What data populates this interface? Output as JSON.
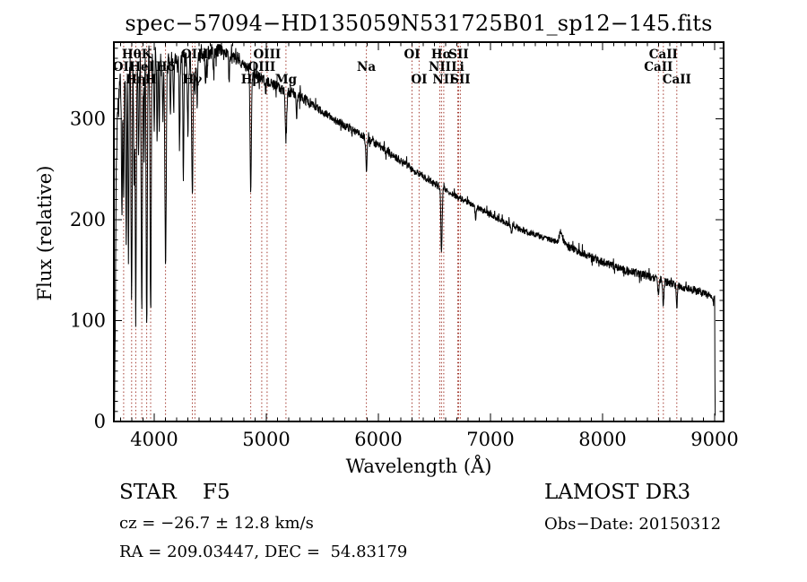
{
  "title": "spec−57094−HD135059N531725B01_sp12−145.fits",
  "footer": {
    "class_label": "STAR    F5",
    "survey": "LAMOST DR3",
    "cz": "cz = −26.7 ± 12.8 km/s",
    "obs_date": "Obs−Date: 20150312",
    "coords": "RA = 209.03447, DEC =  54.83179"
  },
  "chart_data": {
    "type": "line",
    "title": "spec−57094−HD135059N531725B01_sp12−145.fits",
    "xlabel": "Wavelength (Å)",
    "ylabel": "Flux (relative)",
    "xlim": [
      3640,
      9080
    ],
    "ylim": [
      0,
      376
    ],
    "x_ticks": [
      4000,
      5000,
      6000,
      7000,
      8000,
      9000
    ],
    "y_ticks": [
      0,
      100,
      200,
      300
    ],
    "x_minor_step": 100,
    "y_minor_step": 10,
    "grid": false,
    "legend": "none",
    "line_color": "#000000",
    "marker_color": "#A33B30",
    "spectral_lines": [
      {
        "name": "OII",
        "wavelength": 3727,
        "row": 2
      },
      {
        "name": "Hθ",
        "wavelength": 3798,
        "row": 1
      },
      {
        "name": "Hη",
        "wavelength": 3835,
        "row": 3
      },
      {
        "name": "HeI",
        "wavelength": 3889,
        "row": 2
      },
      {
        "name": "K",
        "wavelength": 3933,
        "row": 1
      },
      {
        "name": "H",
        "wavelength": 3968,
        "row": 3
      },
      {
        "name": "Hδ",
        "wavelength": 4101,
        "row": 2
      },
      {
        "name": "Hγ",
        "wavelength": 4340,
        "row": 3
      },
      {
        "name": "OIII",
        "wavelength": 4363,
        "row": 1
      },
      {
        "name": "Hβ",
        "wavelength": 4861,
        "row": 3
      },
      {
        "name": "OIII",
        "wavelength": 4959,
        "row": 2
      },
      {
        "name": "OIII",
        "wavelength": 5007,
        "row": 1
      },
      {
        "name": "Mg",
        "wavelength": 5175,
        "row": 3
      },
      {
        "name": "Na",
        "wavelength": 5893,
        "row": 2
      },
      {
        "name": "OI",
        "wavelength": 6300,
        "row": 1
      },
      {
        "name": "OI",
        "wavelength": 6363,
        "row": 3
      },
      {
        "name": "NII",
        "wavelength": 6548,
        "row": 2
      },
      {
        "name": "Hα",
        "wavelength": 6563,
        "row": 1
      },
      {
        "name": "NII",
        "wavelength": 6583,
        "row": 3
      },
      {
        "name": "Li",
        "wavelength": 6708,
        "row": 2
      },
      {
        "name": "SII",
        "wavelength": 6716,
        "row": 1
      },
      {
        "name": "SII",
        "wavelength": 6731,
        "row": 3
      },
      {
        "name": "CaII",
        "wavelength": 8498,
        "row": 2
      },
      {
        "name": "CaII",
        "wavelength": 8542,
        "row": 1
      },
      {
        "name": "CaII",
        "wavelength": 8662,
        "row": 3
      }
    ],
    "continuum": [
      [
        3645,
        2
      ],
      [
        3650,
        60
      ],
      [
        3655,
        150
      ],
      [
        3660,
        240
      ],
      [
        3670,
        300
      ],
      [
        3690,
        330
      ],
      [
        3715,
        345
      ],
      [
        3730,
        348
      ],
      [
        3760,
        352
      ],
      [
        3800,
        356
      ],
      [
        3850,
        358
      ],
      [
        3900,
        360
      ],
      [
        3950,
        360
      ],
      [
        4000,
        361
      ],
      [
        4050,
        359
      ],
      [
        4100,
        358
      ],
      [
        4150,
        360
      ],
      [
        4200,
        361
      ],
      [
        4250,
        360
      ],
      [
        4300,
        360
      ],
      [
        4350,
        361
      ],
      [
        4400,
        363
      ],
      [
        4450,
        365
      ],
      [
        4500,
        366
      ],
      [
        4550,
        367
      ],
      [
        4600,
        368
      ],
      [
        4650,
        365
      ],
      [
        4700,
        361
      ],
      [
        4750,
        357
      ],
      [
        4800,
        353
      ],
      [
        4861,
        348
      ],
      [
        4900,
        345
      ],
      [
        4959,
        340
      ],
      [
        5007,
        336
      ],
      [
        5050,
        334
      ],
      [
        5100,
        331
      ],
      [
        5175,
        328
      ],
      [
        5250,
        325
      ],
      [
        5300,
        322
      ],
      [
        5400,
        315
      ],
      [
        5500,
        307
      ],
      [
        5600,
        300
      ],
      [
        5700,
        293
      ],
      [
        5800,
        287
      ],
      [
        5893,
        281
      ],
      [
        6000,
        274
      ],
      [
        6100,
        266
      ],
      [
        6200,
        258
      ],
      [
        6300,
        250
      ],
      [
        6400,
        243
      ],
      [
        6500,
        236
      ],
      [
        6563,
        232
      ],
      [
        6600,
        229
      ],
      [
        6700,
        223
      ],
      [
        6800,
        217
      ],
      [
        6900,
        211
      ],
      [
        7000,
        205
      ],
      [
        7100,
        199
      ],
      [
        7200,
        194
      ],
      [
        7300,
        189
      ],
      [
        7400,
        185
      ],
      [
        7500,
        181
      ],
      [
        7600,
        178
      ],
      [
        7700,
        173
      ],
      [
        7800,
        168
      ],
      [
        7900,
        163
      ],
      [
        8000,
        158
      ],
      [
        8100,
        154
      ],
      [
        8200,
        150
      ],
      [
        8300,
        147
      ],
      [
        8400,
        144
      ],
      [
        8500,
        141
      ],
      [
        8600,
        137
      ],
      [
        8700,
        134
      ],
      [
        8800,
        131
      ],
      [
        8900,
        127
      ],
      [
        8960,
        124
      ],
      [
        9000,
        121
      ],
      [
        9001,
        90
      ],
      [
        9003,
        30
      ],
      [
        9005,
        2
      ]
    ],
    "absorption_features": [
      [
        3712,
        150,
        4
      ],
      [
        3727,
        120,
        4
      ],
      [
        3750,
        170,
        4
      ],
      [
        3770,
        200,
        4
      ],
      [
        3798,
        240,
        5
      ],
      [
        3820,
        120,
        4
      ],
      [
        3835,
        250,
        5
      ],
      [
        3860,
        100,
        4
      ],
      [
        3889,
        260,
        5
      ],
      [
        3910,
        90,
        4
      ],
      [
        3933,
        265,
        5
      ],
      [
        3968,
        255,
        5
      ],
      [
        4000,
        80,
        4
      ],
      [
        4026,
        70,
        4
      ],
      [
        4045,
        60,
        4
      ],
      [
        4077,
        60,
        4
      ],
      [
        4101,
        200,
        6
      ],
      [
        4144,
        50,
        4
      ],
      [
        4173,
        45,
        4
      ],
      [
        4226,
        90,
        4
      ],
      [
        4260,
        120,
        4
      ],
      [
        4300,
        70,
        5
      ],
      [
        4340,
        135,
        6
      ],
      [
        4363,
        40,
        4
      ],
      [
        4383,
        50,
        4
      ],
      [
        4457,
        30,
        4
      ],
      [
        4472,
        22,
        4
      ],
      [
        4530,
        25,
        4
      ],
      [
        4668,
        25,
        4
      ],
      [
        4861,
        118,
        6
      ],
      [
        5175,
        48,
        7
      ],
      [
        5270,
        20,
        5
      ],
      [
        5893,
        31,
        6
      ],
      [
        6563,
        62,
        6
      ],
      [
        6867,
        12,
        5
      ],
      [
        7186,
        8,
        5
      ],
      [
        8498,
        16,
        5
      ],
      [
        8542,
        26,
        5
      ],
      [
        8662,
        22,
        5
      ]
    ],
    "emission_bumps": [
      [
        7630,
        12,
        14
      ]
    ],
    "noise_segments": [
      [
        3645,
        4050,
        15
      ],
      [
        4050,
        4600,
        8
      ],
      [
        4600,
        5400,
        5.5
      ],
      [
        5400,
        6600,
        4
      ],
      [
        6600,
        7600,
        3
      ],
      [
        7600,
        9006,
        4
      ]
    ],
    "sample_step": 2.5,
    "seed": 11
  }
}
